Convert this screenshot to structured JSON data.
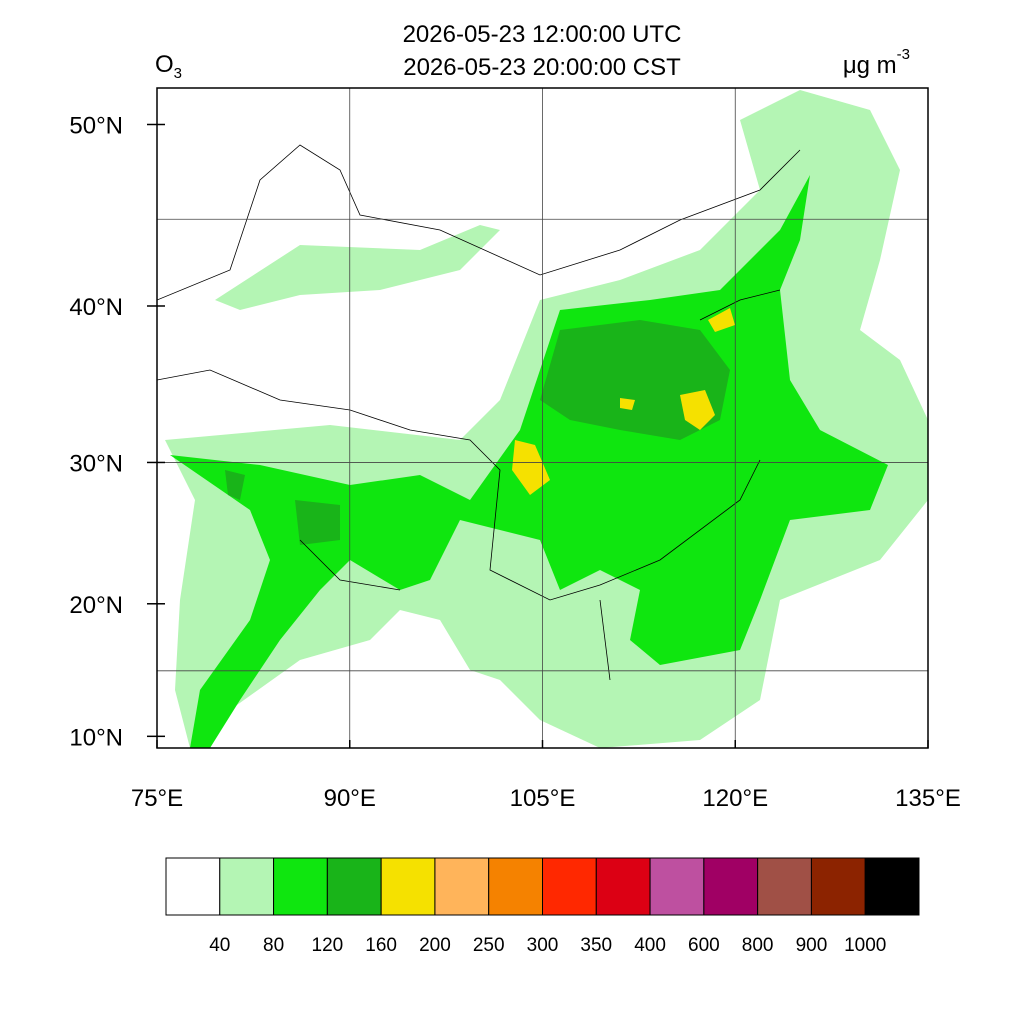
{
  "title_utc": "2026-05-23 12:00:00 UTC",
  "title_local": "2026-05-23 20:00:00 CST",
  "variable": {
    "base": "O",
    "sub": "3"
  },
  "units": {
    "base": "μg m",
    "sup": "-3"
  },
  "map": {
    "lonlim": [
      75,
      135
    ],
    "latlim": [
      9.1,
      51.8
    ],
    "xticks": [
      {
        "value": 75,
        "label": "75°E"
      },
      {
        "value": 90,
        "label": "90°E"
      },
      {
        "value": 105,
        "label": "105°E"
      },
      {
        "value": 120,
        "label": "120°E"
      },
      {
        "value": 135,
        "label": "135°E"
      }
    ],
    "yticks": [
      {
        "value": 10,
        "label": "10°N"
      },
      {
        "value": 20,
        "label": "20°N"
      },
      {
        "value": 30,
        "label": "30°N"
      },
      {
        "value": 40,
        "label": "40°N"
      },
      {
        "value": 50,
        "label": "50°N"
      }
    ],
    "grid_lon": [
      90,
      105,
      120
    ],
    "grid_lat": [
      15,
      30,
      45
    ]
  },
  "colorbar": {
    "levels": [
      40,
      80,
      120,
      160,
      200,
      250,
      300,
      350,
      400,
      600,
      800,
      900,
      1000
    ],
    "colors": [
      "#ffffff",
      "#b4f5b4",
      "#0fe60f",
      "#19b419",
      "#f5e100",
      "#ffb45a",
      "#f58200",
      "#ff2800",
      "#dc0014",
      "#be50a0",
      "#a00064",
      "#a05046",
      "#8c2300",
      "#000000"
    ]
  }
}
